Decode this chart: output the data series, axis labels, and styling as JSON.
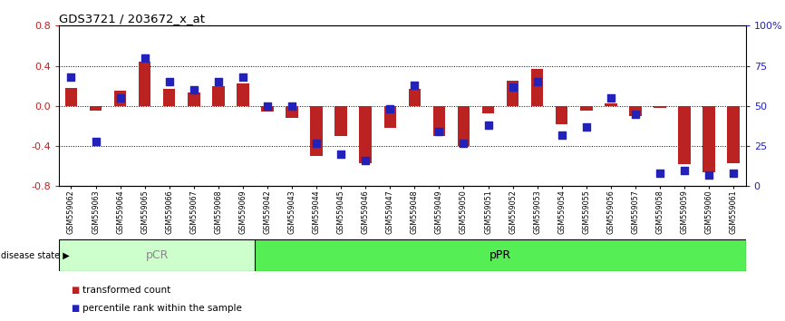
{
  "title": "GDS3721 / 203672_x_at",
  "categories": [
    "GSM559062",
    "GSM559063",
    "GSM559064",
    "GSM559065",
    "GSM559066",
    "GSM559067",
    "GSM559068",
    "GSM559069",
    "GSM559042",
    "GSM559043",
    "GSM559044",
    "GSM559045",
    "GSM559046",
    "GSM559047",
    "GSM559048",
    "GSM559049",
    "GSM559050",
    "GSM559051",
    "GSM559052",
    "GSM559053",
    "GSM559054",
    "GSM559055",
    "GSM559056",
    "GSM559057",
    "GSM559058",
    "GSM559059",
    "GSM559060",
    "GSM559061"
  ],
  "bar_values": [
    0.18,
    -0.05,
    0.15,
    0.44,
    0.17,
    0.13,
    0.2,
    0.22,
    -0.06,
    -0.12,
    -0.5,
    -0.3,
    -0.57,
    -0.22,
    0.17,
    -0.3,
    -0.4,
    -0.07,
    0.25,
    0.37,
    -0.18,
    -0.05,
    0.03,
    -0.1,
    -0.02,
    -0.58,
    -0.66,
    -0.57
  ],
  "percentile_values": [
    68,
    28,
    55,
    80,
    65,
    60,
    65,
    68,
    50,
    50,
    27,
    20,
    16,
    48,
    63,
    34,
    27,
    38,
    62,
    65,
    32,
    37,
    55,
    45,
    8,
    10,
    7,
    8
  ],
  "pCR_count": 8,
  "pPR_count": 20,
  "ylim": [
    -0.8,
    0.8
  ],
  "yticks_left": [
    -0.8,
    -0.4,
    0.0,
    0.4,
    0.8
  ],
  "right_yticks": [
    0,
    25,
    50,
    75,
    100
  ],
  "bar_color": "#BB2222",
  "dot_color": "#2222BB",
  "pCR_color": "#CCFFCC",
  "pPR_color": "#55EE55",
  "dot_size": 28,
  "bar_width": 0.5,
  "dotted_line_vals": [
    -0.4,
    0.0,
    0.4
  ],
  "legend_red": "transformed count",
  "legend_blue": "percentile rank within the sample",
  "disease_state_label": "disease state",
  "pCR_label": "pCR",
  "pPR_label": "pPR"
}
